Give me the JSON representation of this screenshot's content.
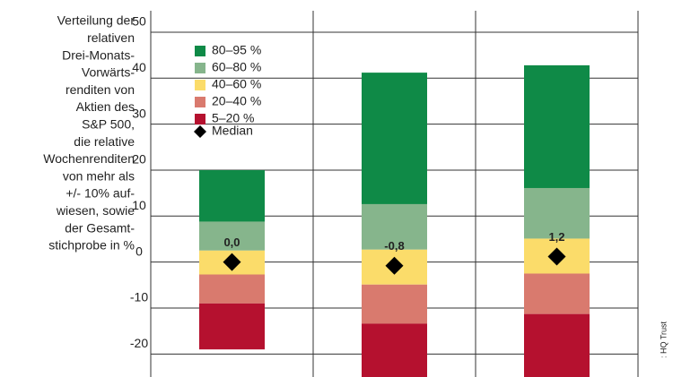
{
  "chart_data": {
    "type": "floating-stacked-bar",
    "y_label_lines": [
      "Verteilung der",
      "relativen",
      "Drei-Monats-",
      "Vorwärts-",
      "renditen von",
      "Aktien des",
      "S&P 500,",
      "die relative",
      "Wochenrenditen",
      "von mehr als",
      "+/- 10% auf-",
      "wiesen, sowie",
      "der Gesamt-",
      "stichprobe in %"
    ],
    "source": ": HQ Trust",
    "categories": [
      null,
      null,
      null
    ],
    "series": [
      {
        "name": "80–95 %",
        "color": "#0f8a47",
        "low": [
          8.8,
          12.6,
          16.1
        ],
        "high": [
          20,
          41.2,
          42.8
        ]
      },
      {
        "name": "60–80 %",
        "color": "#86b58c",
        "low": [
          2.5,
          2.7,
          5.1
        ],
        "high": [
          8.8,
          12.6,
          16.1
        ]
      },
      {
        "name": "40–60 %",
        "color": "#fbdc6a",
        "low": [
          -2.7,
          -4.9,
          -2.5
        ],
        "high": [
          2.5,
          2.7,
          5.1
        ]
      },
      {
        "name": "20–40 %",
        "color": "#d97a6e",
        "low": [
          -9,
          -13.4,
          -11.3
        ],
        "high": [
          -2.7,
          -4.9,
          -2.5
        ]
      },
      {
        "name": "5–20 %",
        "color": "#b5112f",
        "low": [
          -19,
          -25,
          -25
        ],
        "high": [
          -9,
          -13.4,
          -11.3
        ]
      }
    ],
    "median": {
      "name": "Median",
      "color": "#000000",
      "values": [
        0,
        -0.8,
        1.2
      ],
      "value_labels": [
        "0,0",
        "-0,8",
        "1,2"
      ]
    },
    "ylim": [
      -25,
      57
    ],
    "yticks": [
      -20,
      -10,
      0,
      10,
      20,
      30,
      40,
      50
    ],
    "grid": true
  }
}
